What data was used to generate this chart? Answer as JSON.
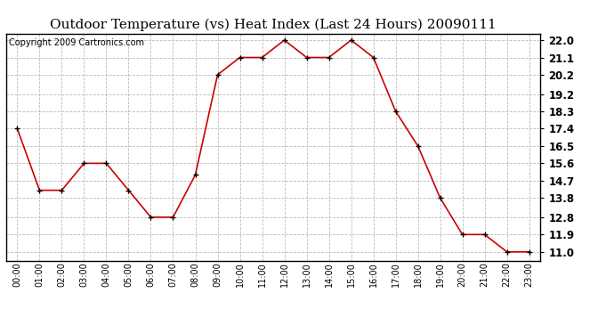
{
  "title": "Outdoor Temperature (vs) Heat Index (Last 24 Hours) 20090111",
  "copyright": "Copyright 2009 Cartronics.com",
  "x_labels": [
    "00:00",
    "01:00",
    "02:00",
    "03:00",
    "04:00",
    "05:00",
    "06:00",
    "07:00",
    "08:00",
    "09:00",
    "10:00",
    "11:00",
    "12:00",
    "13:00",
    "14:00",
    "15:00",
    "16:00",
    "17:00",
    "18:00",
    "19:00",
    "20:00",
    "21:00",
    "22:00",
    "23:00"
  ],
  "y_values": [
    17.4,
    14.2,
    14.2,
    15.6,
    15.6,
    14.2,
    12.8,
    12.8,
    15.0,
    20.2,
    21.1,
    21.1,
    22.0,
    21.1,
    21.1,
    22.0,
    21.1,
    18.3,
    16.5,
    13.8,
    11.9,
    11.9,
    11.0,
    11.0
  ],
  "line_color": "#cc0000",
  "marker_color": "#000000",
  "background_color": "#ffffff",
  "grid_color": "#bbbbbb",
  "title_fontsize": 11,
  "copyright_fontsize": 7,
  "y_ticks": [
    11.0,
    11.9,
    12.8,
    13.8,
    14.7,
    15.6,
    16.5,
    17.4,
    18.3,
    19.2,
    20.2,
    21.1,
    22.0
  ],
  "ylim": [
    10.55,
    22.35
  ],
  "xlim": [
    -0.5,
    23.5
  ]
}
